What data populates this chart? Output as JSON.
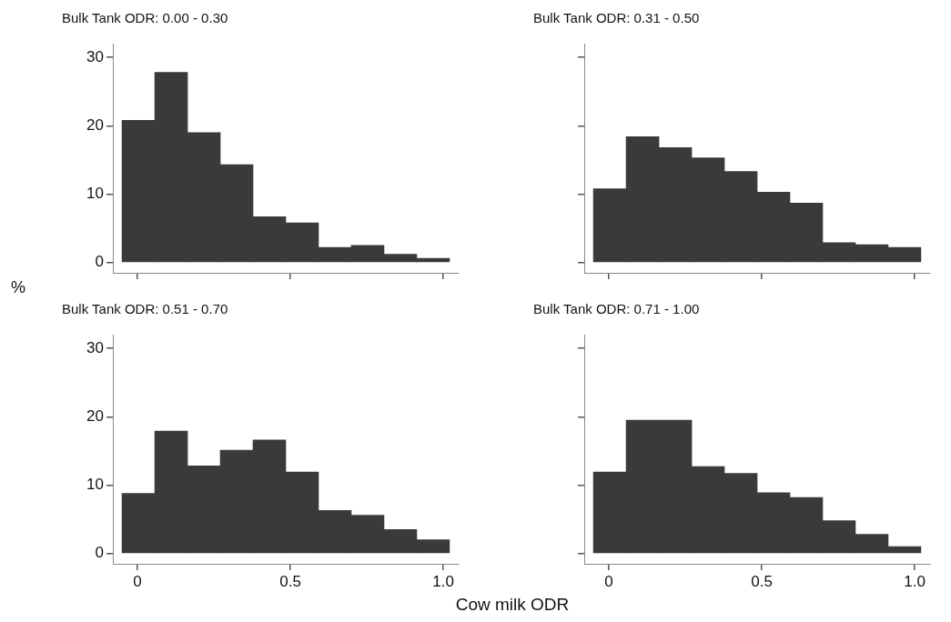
{
  "chart_data": [
    {
      "type": "histogram",
      "title": "Bulk Tank ODR: 0.00 - 0.30",
      "ylabel": "%",
      "bins": [
        -0.05,
        0.057,
        0.164,
        0.271,
        0.378,
        0.485,
        0.592,
        0.699,
        0.806,
        0.913,
        1.02
      ],
      "values": [
        20.8,
        27.8,
        19.0,
        14.3,
        6.7,
        5.8,
        2.2,
        2.5,
        1.2,
        0.6
      ],
      "color": "#3a3a3a",
      "xlim": [
        -0.08,
        1.05
      ],
      "ylim": [
        -1.5,
        32
      ],
      "xticks": [
        0,
        0.5,
        1
      ],
      "yticks": [
        0,
        10,
        20,
        30
      ],
      "tick_labels": "y"
    },
    {
      "type": "histogram",
      "title": "Bulk Tank ODR: 0.31 - 0.50",
      "bins": [
        -0.05,
        0.057,
        0.164,
        0.271,
        0.378,
        0.485,
        0.592,
        0.699,
        0.806,
        0.913,
        1.02
      ],
      "values": [
        10.8,
        18.4,
        16.8,
        15.3,
        13.3,
        10.3,
        8.7,
        2.9,
        2.6,
        2.2
      ],
      "color": "#3a3a3a",
      "xlim": [
        -0.08,
        1.05
      ],
      "ylim": [
        -1.5,
        32
      ],
      "xticks": [
        0,
        0.5,
        1
      ],
      "yticks": [
        0,
        10,
        20,
        30
      ],
      "tick_labels": false
    },
    {
      "type": "histogram",
      "title": "Bulk Tank ODR: 0.51 - 0.70",
      "xlabel": "Cow milk ODR",
      "bins": [
        -0.05,
        0.057,
        0.164,
        0.271,
        0.378,
        0.485,
        0.592,
        0.699,
        0.806,
        0.913,
        1.02
      ],
      "values": [
        8.8,
        17.9,
        12.8,
        15.1,
        16.6,
        11.9,
        6.3,
        5.6,
        3.5,
        2.0
      ],
      "color": "#3a3a3a",
      "xlim": [
        -0.08,
        1.05
      ],
      "ylim": [
        -1.5,
        32
      ],
      "xticks": [
        0,
        0.5,
        {
          "value": 1,
          "label": "1.0"
        }
      ],
      "yticks": [
        0,
        10,
        20,
        30
      ]
    },
    {
      "type": "histogram",
      "title": "Bulk Tank ODR: 0.71 - 1.00",
      "bins": [
        -0.05,
        0.057,
        0.164,
        0.271,
        0.378,
        0.485,
        0.592,
        0.699,
        0.806,
        0.913,
        1.02
      ],
      "values": [
        11.9,
        19.5,
        19.5,
        12.7,
        11.7,
        8.9,
        8.2,
        4.8,
        2.8,
        1.0
      ],
      "color": "#3a3a3a",
      "xlim": [
        -0.08,
        1.05
      ],
      "ylim": [
        -1.5,
        32
      ],
      "xticks": [
        0,
        0.5,
        {
          "value": 1,
          "label": "1.0"
        }
      ],
      "yticks": [
        0,
        10,
        20,
        30
      ],
      "tick_labels": "x"
    }
  ]
}
